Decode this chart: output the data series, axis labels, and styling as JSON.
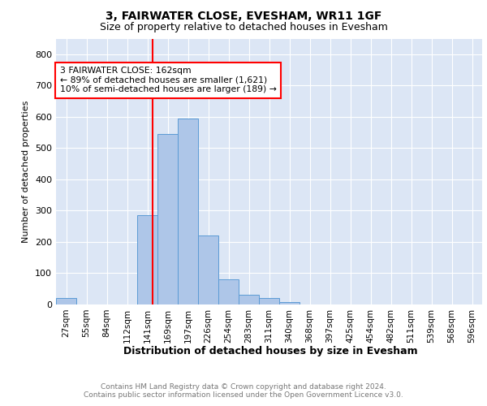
{
  "title1": "3, FAIRWATER CLOSE, EVESHAM, WR11 1GF",
  "title2": "Size of property relative to detached houses in Evesham",
  "xlabel": "Distribution of detached houses by size in Evesham",
  "ylabel": "Number of detached properties",
  "footer1": "Contains HM Land Registry data © Crown copyright and database right 2024.",
  "footer2": "Contains public sector information licensed under the Open Government Licence v3.0.",
  "bin_labels": [
    "27sqm",
    "55sqm",
    "84sqm",
    "112sqm",
    "141sqm",
    "169sqm",
    "197sqm",
    "226sqm",
    "254sqm",
    "283sqm",
    "311sqm",
    "340sqm",
    "368sqm",
    "397sqm",
    "425sqm",
    "454sqm",
    "482sqm",
    "511sqm",
    "539sqm",
    "568sqm",
    "596sqm"
  ],
  "bar_values": [
    20,
    0,
    0,
    0,
    285,
    545,
    595,
    220,
    80,
    30,
    20,
    8,
    0,
    0,
    0,
    0,
    0,
    0,
    0,
    0,
    0
  ],
  "bar_color": "#aec6e8",
  "bar_edge_color": "#5b9bd5",
  "vline_color": "red",
  "annotation_text": "3 FAIRWATER CLOSE: 162sqm\n← 89% of detached houses are smaller (1,621)\n10% of semi-detached houses are larger (189) →",
  "ylim": [
    0,
    850
  ],
  "yticks": [
    0,
    100,
    200,
    300,
    400,
    500,
    600,
    700,
    800
  ],
  "plot_bg_color": "#dce6f5",
  "fig_bg_color": "#ffffff",
  "grid_color": "#ffffff",
  "title1_fontsize": 10,
  "title2_fontsize": 9,
  "ylabel_fontsize": 8,
  "xlabel_fontsize": 9,
  "tick_fontsize": 7.5,
  "ytick_fontsize": 8,
  "footer_fontsize": 6.5,
  "annotation_fontsize": 7.8,
  "vline_position": 4.75
}
